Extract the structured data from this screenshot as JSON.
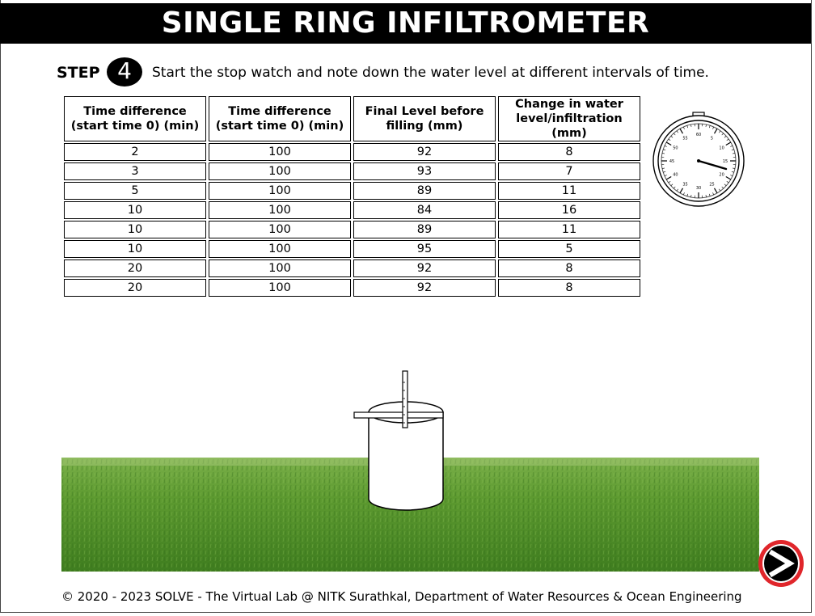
{
  "header": {
    "title": "SINGLE RING INFILTROMETER"
  },
  "step": {
    "label": "STEP",
    "number": "4",
    "instruction": "Start the stop watch and note down the water level at different intervals of time."
  },
  "table": {
    "headers": [
      [
        "Time difference",
        "(start time 0) (min)"
      ],
      [
        "Time difference",
        "(start time 0) (min)"
      ],
      [
        "Final Level before",
        "filling (mm)"
      ],
      [
        "Change in water",
        "level/infiltration",
        "(mm)"
      ]
    ],
    "rows": [
      [
        "2",
        "100",
        "92",
        "8"
      ],
      [
        "3",
        "100",
        "93",
        "7"
      ],
      [
        "5",
        "100",
        "89",
        "11"
      ],
      [
        "10",
        "100",
        "84",
        "16"
      ],
      [
        "10",
        "100",
        "89",
        "11"
      ],
      [
        "10",
        "100",
        "95",
        "5"
      ],
      [
        "20",
        "100",
        "92",
        "8"
      ],
      [
        "20",
        "100",
        "92",
        "8"
      ]
    ]
  },
  "stopwatch": {
    "dial_labels": [
      "60",
      "5",
      "10",
      "15",
      "20",
      "25",
      "30",
      "35",
      "40",
      "45",
      "50",
      "55"
    ]
  },
  "footer": {
    "text": "© 2020 - 2023 SOLVE - The Virtual Lab @ NITK Surathkal, Department of Water Resources & Ocean Engineering"
  },
  "colors": {
    "title_bg": "#000000",
    "next_ring": "#e0262b",
    "grass": "#4f8f2a"
  },
  "icons": {
    "next": "next-arrow-icon",
    "stopwatch": "stopwatch-icon"
  }
}
